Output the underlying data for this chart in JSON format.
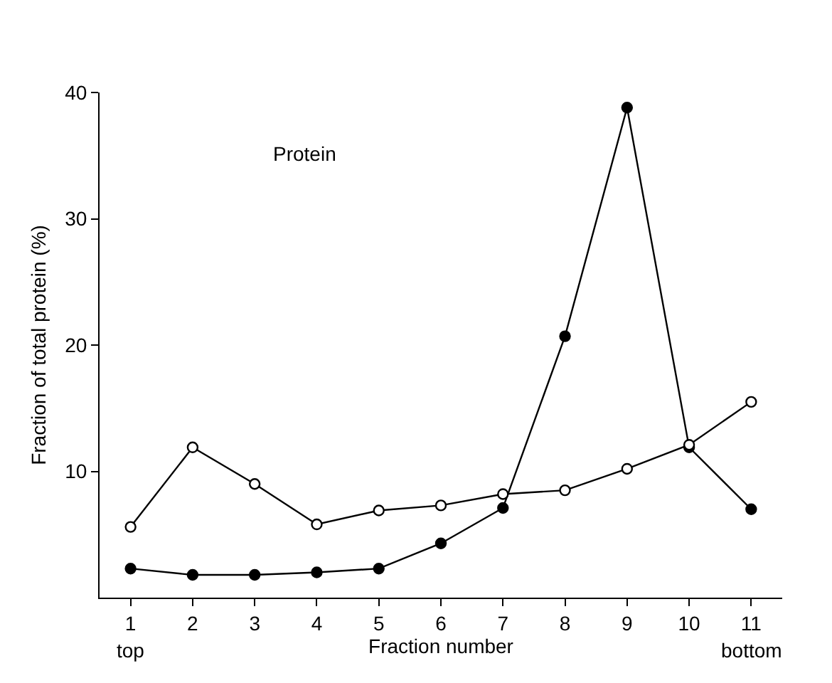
{
  "chart_data": {
    "type": "line",
    "xlabel": "Fraction number",
    "ylabel": "Fraction of total protein (%)",
    "annotations": [
      "Protein",
      "top",
      "bottom"
    ],
    "x": [
      1,
      2,
      3,
      4,
      5,
      6,
      7,
      8,
      9,
      10,
      11
    ],
    "series": [
      {
        "color": "#000000",
        "values": [
          5.6,
          11.9,
          9.0,
          5.8,
          6.9,
          7.3,
          8.2,
          8.5,
          10.2,
          12.1,
          15.5
        ]
      },
      {
        "color": "#000000",
        "values": [
          2.3,
          1.8,
          1.8,
          2.0,
          2.3,
          4.3,
          7.1,
          20.7,
          38.8,
          11.9,
          7.0
        ]
      }
    ],
    "xlim": [
      0.5,
      11.5
    ],
    "xticks": [
      1,
      2,
      3,
      4,
      5,
      6,
      7,
      8,
      9,
      10,
      11
    ],
    "ylim": [
      0,
      40
    ],
    "yticks": [
      10,
      20,
      30,
      40
    ],
    "marker": "circle",
    "line_style": "solid"
  }
}
